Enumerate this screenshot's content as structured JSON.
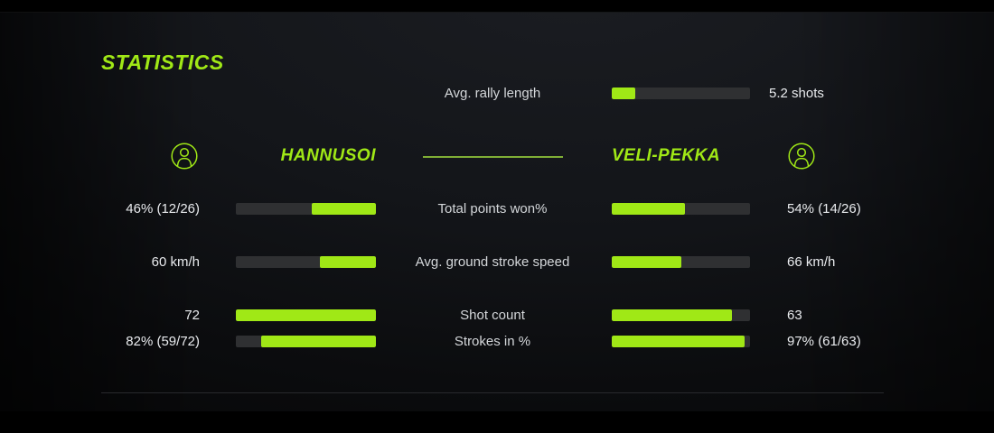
{
  "theme": {
    "accent": "#a0e816",
    "accent_dim": "#7fae35",
    "track": "#2f3032",
    "value_text": "#e9ebee",
    "label_text": "#d4d7da"
  },
  "title": "STATISTICS",
  "rally": {
    "label": "Avg. rally length",
    "value": "5.2 shots",
    "fill_pct": 17
  },
  "players": {
    "left": {
      "name": "HANNUSOI"
    },
    "right": {
      "name": "VELI-PEKKA"
    }
  },
  "rows": [
    {
      "label": "Total points won%",
      "left_value": "46% (12/26)",
      "right_value": "54% (14/26)",
      "left_fill": 46,
      "right_fill": 53
    },
    {
      "label": "Avg. ground stroke speed",
      "left_value": "60 km/h",
      "right_value": "66 km/h",
      "left_fill": 40,
      "right_fill": 50
    },
    {
      "label": "Shot count",
      "left_value": "72",
      "right_value": "63",
      "left_fill": 100,
      "right_fill": 87
    },
    {
      "label": "Strokes in %",
      "left_value": "82% (59/72)",
      "right_value": "97% (61/63)",
      "left_fill": 82,
      "right_fill": 96
    }
  ],
  "chart_data": {
    "type": "bar",
    "title": "STATISTICS",
    "legend_entries": [
      "HANNUSOI",
      "VELI-PEKKA"
    ],
    "shared_metric": {
      "label": "Avg. rally length",
      "value": 5.2,
      "unit": "shots",
      "fill_pct": 17
    },
    "categories": [
      "Total points won%",
      "Avg. ground stroke speed",
      "Shot count",
      "Strokes in %"
    ],
    "series": [
      {
        "name": "HANNUSOI",
        "values": [
          46,
          60,
          72,
          82
        ],
        "display": [
          "46% (12/26)",
          "60 km/h",
          "72",
          "82% (59/72)"
        ],
        "fill_pct": [
          46,
          40,
          100,
          82
        ]
      },
      {
        "name": "VELI-PEKKA",
        "values": [
          54,
          66,
          63,
          97
        ],
        "display": [
          "54% (14/26)",
          "66 km/h",
          "63",
          "97% (61/63)"
        ],
        "fill_pct": [
          53,
          50,
          87,
          96
        ]
      }
    ],
    "layout": "horizontal paired bars, left player fills anchored right, right player fills anchored left, value range 0-100%"
  }
}
